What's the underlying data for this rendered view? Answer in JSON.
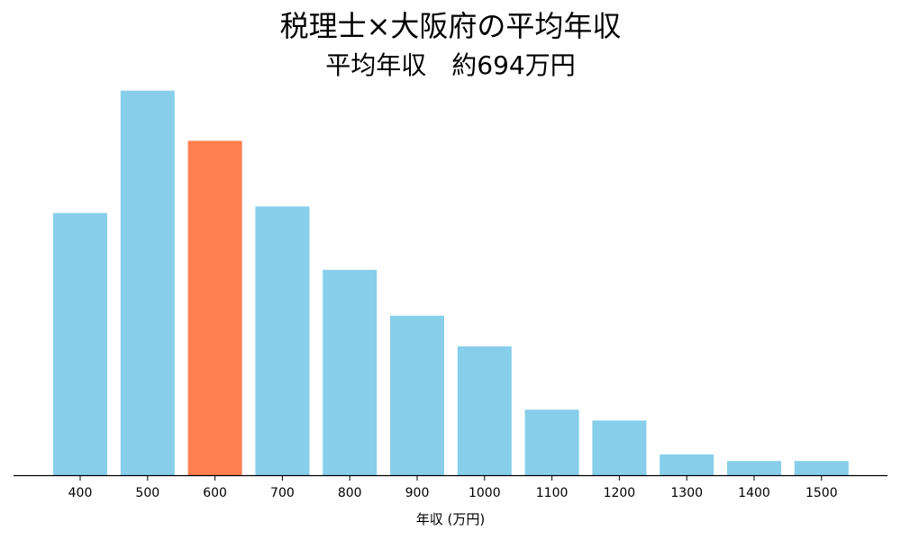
{
  "chart_data": {
    "type": "bar",
    "title": "税理士×大阪府の平均年収",
    "subtitle": "平均年収　約694万円",
    "xlabel": "年収 (万円)",
    "ylabel": "",
    "categories": [
      "400",
      "500",
      "600",
      "700",
      "800",
      "900",
      "1000",
      "1100",
      "1200",
      "1300",
      "1400",
      "1500"
    ],
    "values": [
      12.0,
      17.6,
      15.3,
      12.3,
      9.4,
      7.3,
      5.9,
      3.0,
      2.5,
      0.95,
      0.65,
      0.65
    ],
    "highlight_index": 2,
    "ylim": [
      0,
      18
    ],
    "grid": false,
    "colors": {
      "bar": "#87CEEB",
      "highlight": "#FF7F50",
      "axis": "#000000"
    }
  }
}
